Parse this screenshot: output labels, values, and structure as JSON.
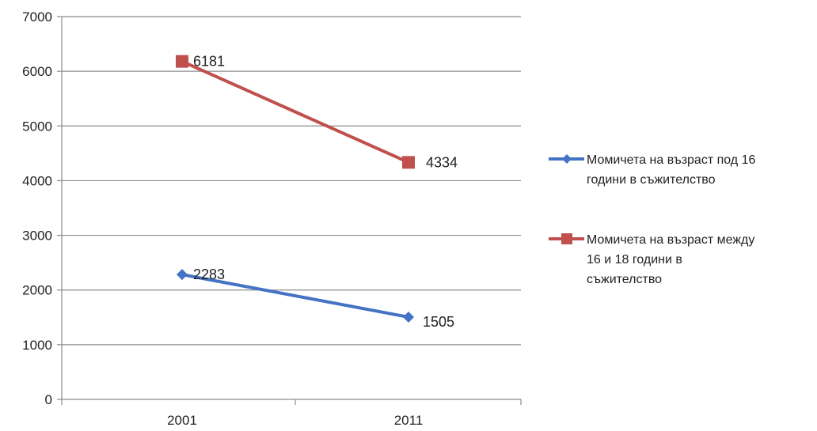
{
  "chart_data": {
    "type": "line",
    "categories": [
      "2001",
      "2011"
    ],
    "ylim": [
      0,
      7000
    ],
    "yticks": [
      0,
      1000,
      2000,
      3000,
      4000,
      5000,
      6000,
      7000
    ],
    "grid": true,
    "legend_position": "right",
    "series": [
      {
        "name": "Момичета на възраст под 16 години в съжителство",
        "name_lines": [
          "Момичета на възраст под 16",
          "години в съжителство"
        ],
        "values": [
          2283,
          1505
        ],
        "color": "#4472C4",
        "marker": "diamond"
      },
      {
        "name": "Момичета на възраст между 16 и 18 години в съжителство",
        "name_lines": [
          "Момичета на възраст между",
          "16 и 18 години в",
          "съжителство"
        ],
        "values": [
          6181,
          4334
        ],
        "color": "#C0504D",
        "marker": "square"
      }
    ]
  }
}
